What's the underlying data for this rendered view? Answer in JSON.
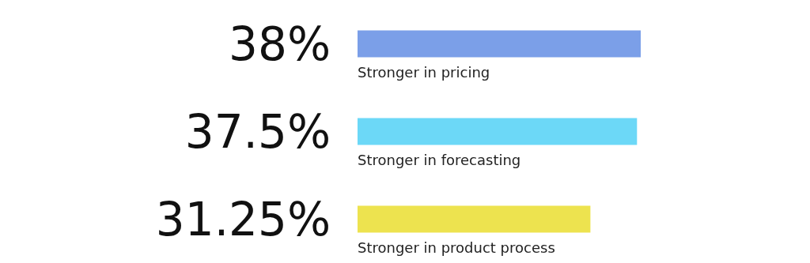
{
  "chart_data": {
    "type": "bar",
    "orientation": "horizontal",
    "categories": [
      "Stronger in pricing",
      "Stronger in forecasting",
      "Stronger in product process"
    ],
    "values": [
      38,
      37.5,
      31.25
    ],
    "value_labels": [
      "38%",
      "37.5%",
      "31.25%"
    ],
    "colors": [
      "#7b9fe8",
      "#6cd8f7",
      "#ede34f"
    ]
  }
}
